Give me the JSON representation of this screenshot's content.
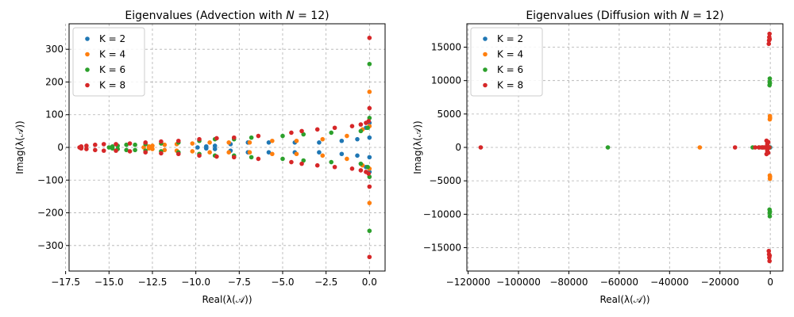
{
  "colors": {
    "K2": "#1f77b4",
    "K4": "#ff7f0e",
    "K6": "#2ca02c",
    "K8": "#d62728",
    "grid": "#b0b0b0"
  },
  "chart_data": [
    {
      "type": "scatter",
      "title": "Eigenvalues (Advection with ",
      "title_math": "N",
      "title_end": " = 12)",
      "xlabel": "Real(λ(𝒜))",
      "ylabel": "Imag(λ(𝒜))",
      "xlim": [
        -17.3,
        0.9
      ],
      "ylim": [
        -378,
        378
      ],
      "xticks": [
        -17.5,
        -15.0,
        -12.5,
        -10.0,
        -7.5,
        -5.0,
        -2.5,
        0.0
      ],
      "xtick_labels": [
        "−17.5",
        "−15.0",
        "−12.5",
        "−10.0",
        "−7.5",
        "−5.0",
        "−2.5",
        "0.0"
      ],
      "yticks": [
        -300,
        -200,
        -100,
        0,
        100,
        200,
        300
      ],
      "ytick_labels": [
        "−300",
        "−200",
        "−100",
        "0",
        "100",
        "200",
        "300"
      ],
      "grid": true,
      "legend_position": "top-left",
      "series": [
        {
          "name": "K = 2",
          "points": [
            [
              -9.9,
              0
            ],
            [
              -9.4,
              3
            ],
            [
              -9.4,
              -3
            ],
            [
              -8.9,
              5
            ],
            [
              -8.9,
              -5
            ],
            [
              -8.0,
              10
            ],
            [
              -8.0,
              -10
            ],
            [
              -7.0,
              15
            ],
            [
              -7.0,
              -15
            ],
            [
              -5.8,
              15
            ],
            [
              -5.8,
              -15
            ],
            [
              -4.3,
              15
            ],
            [
              -4.3,
              -15
            ],
            [
              -2.9,
              15
            ],
            [
              -2.9,
              -15
            ],
            [
              -1.6,
              20
            ],
            [
              -1.6,
              -20
            ],
            [
              -0.7,
              25
            ],
            [
              -0.7,
              -25
            ],
            [
              0.0,
              30
            ],
            [
              0.0,
              -30
            ],
            [
              0.0,
              75
            ],
            [
              0.0,
              -75
            ],
            [
              -0.2,
              60
            ],
            [
              -0.2,
              -60
            ]
          ]
        },
        {
          "name": "K = 4",
          "points": [
            [
              -13.0,
              0
            ],
            [
              -12.7,
              3
            ],
            [
              -12.7,
              -3
            ],
            [
              -12.5,
              5
            ],
            [
              -12.5,
              -5
            ],
            [
              -11.8,
              8
            ],
            [
              -11.8,
              -8
            ],
            [
              -11.1,
              10
            ],
            [
              -11.1,
              -10
            ],
            [
              -10.2,
              12
            ],
            [
              -10.2,
              -12
            ],
            [
              -9.2,
              15
            ],
            [
              -9.2,
              -15
            ],
            [
              -8.1,
              15
            ],
            [
              -8.1,
              -15
            ],
            [
              -6.9,
              15
            ],
            [
              -6.9,
              -15
            ],
            [
              -5.6,
              20
            ],
            [
              -5.6,
              -20
            ],
            [
              -4.2,
              20
            ],
            [
              -4.2,
              -20
            ],
            [
              -2.7,
              25
            ],
            [
              -2.7,
              -25
            ],
            [
              -1.3,
              35
            ],
            [
              -1.3,
              -35
            ],
            [
              -0.4,
              55
            ],
            [
              -0.4,
              -55
            ],
            [
              0.0,
              65
            ],
            [
              0.0,
              -65
            ],
            [
              0.0,
              170
            ],
            [
              0.0,
              -170
            ]
          ]
        },
        {
          "name": "K = 6",
          "points": [
            [
              -15.0,
              0
            ],
            [
              -14.8,
              3
            ],
            [
              -14.8,
              -3
            ],
            [
              -14.5,
              5
            ],
            [
              -14.5,
              -5
            ],
            [
              -14.0,
              8
            ],
            [
              -14.0,
              -8
            ],
            [
              -13.5,
              8
            ],
            [
              -13.5,
              -8
            ],
            [
              -12.9,
              10
            ],
            [
              -12.9,
              -10
            ],
            [
              -12.0,
              12
            ],
            [
              -12.0,
              -12
            ],
            [
              -11.0,
              15
            ],
            [
              -11.0,
              -15
            ],
            [
              -9.8,
              20
            ],
            [
              -9.8,
              -20
            ],
            [
              -8.9,
              25
            ],
            [
              -8.9,
              -25
            ],
            [
              -7.8,
              25
            ],
            [
              -7.8,
              -25
            ],
            [
              -6.8,
              30
            ],
            [
              -6.8,
              -30
            ],
            [
              -5.0,
              35
            ],
            [
              -5.0,
              -35
            ],
            [
              -3.8,
              40
            ],
            [
              -3.8,
              -40
            ],
            [
              -2.2,
              45
            ],
            [
              -2.2,
              -45
            ],
            [
              -0.5,
              50
            ],
            [
              -0.5,
              -50
            ],
            [
              -0.1,
              60
            ],
            [
              -0.1,
              -60
            ],
            [
              0.0,
              90
            ],
            [
              0.0,
              -90
            ],
            [
              0.0,
              255
            ],
            [
              0.0,
              -255
            ]
          ]
        },
        {
          "name": "K = 8",
          "points": [
            [
              -16.7,
              0
            ],
            [
              -16.6,
              3
            ],
            [
              -16.6,
              -3
            ],
            [
              -16.3,
              5
            ],
            [
              -16.3,
              -5
            ],
            [
              -15.8,
              8
            ],
            [
              -15.8,
              -8
            ],
            [
              -15.3,
              10
            ],
            [
              -15.3,
              -10
            ],
            [
              -14.6,
              10
            ],
            [
              -14.6,
              -10
            ],
            [
              -13.8,
              12
            ],
            [
              -13.8,
              -12
            ],
            [
              -12.9,
              15
            ],
            [
              -12.9,
              -15
            ],
            [
              -12.0,
              18
            ],
            [
              -12.0,
              -18
            ],
            [
              -11.0,
              20
            ],
            [
              -11.0,
              -20
            ],
            [
              -9.8,
              25
            ],
            [
              -9.8,
              -25
            ],
            [
              -8.8,
              28
            ],
            [
              -8.8,
              -28
            ],
            [
              -7.8,
              30
            ],
            [
              -7.8,
              -30
            ],
            [
              -6.4,
              35
            ],
            [
              -6.4,
              -35
            ],
            [
              -4.5,
              45
            ],
            [
              -4.5,
              -45
            ],
            [
              -3.9,
              50
            ],
            [
              -3.9,
              -50
            ],
            [
              -3.0,
              55
            ],
            [
              -3.0,
              -55
            ],
            [
              -2.0,
              60
            ],
            [
              -2.0,
              -60
            ],
            [
              -1.0,
              65
            ],
            [
              -1.0,
              -65
            ],
            [
              -0.5,
              70
            ],
            [
              -0.5,
              -70
            ],
            [
              -0.2,
              75
            ],
            [
              -0.2,
              -75
            ],
            [
              -0.05,
              80
            ],
            [
              -0.05,
              -80
            ],
            [
              0.0,
              120
            ],
            [
              0.0,
              -120
            ],
            [
              0.0,
              335
            ],
            [
              0.0,
              -335
            ]
          ]
        }
      ]
    },
    {
      "type": "scatter",
      "title": "Eigenvalues (Diffusion with ",
      "title_math": "N",
      "title_end": " = 12)",
      "xlabel": "Real(λ(𝒜))",
      "ylabel": "Imag(λ(𝒜))",
      "xlim": [
        -120500,
        5000
      ],
      "ylim": [
        -18500,
        18500
      ],
      "xticks": [
        -120000,
        -100000,
        -80000,
        -60000,
        -40000,
        -20000,
        0
      ],
      "xtick_labels": [
        "−120000",
        "−100000",
        "−80000",
        "−60000",
        "−40000",
        "−20000",
        "0"
      ],
      "yticks": [
        -15000,
        -10000,
        -5000,
        0,
        5000,
        10000,
        15000
      ],
      "ytick_labels": [
        "−15000",
        "−10000",
        "−5000",
        "0",
        "5000",
        "10000",
        "15000"
      ],
      "grid": true,
      "legend_position": "top-left",
      "series": [
        {
          "name": "K = 2",
          "points": [
            [
              -1400,
              0
            ],
            [
              -300,
              0
            ],
            [
              -100,
              0
            ],
            [
              -50,
              0
            ]
          ]
        },
        {
          "name": "K = 4",
          "points": [
            [
              -28000,
              0
            ],
            [
              -2000,
              0
            ],
            [
              -1200,
              0
            ],
            [
              -600,
              0
            ],
            [
              -300,
              0
            ],
            [
              -200,
              4200
            ],
            [
              -200,
              -4200
            ],
            [
              -150,
              4700
            ],
            [
              -150,
              -4700
            ],
            [
              -100,
              4400
            ],
            [
              -100,
              -4400
            ]
          ]
        },
        {
          "name": "K = 6",
          "points": [
            [
              -64500,
              0
            ],
            [
              -7000,
              0
            ],
            [
              -4500,
              0
            ],
            [
              -3000,
              0
            ],
            [
              -1500,
              0
            ],
            [
              -800,
              0
            ],
            [
              -400,
              0
            ],
            [
              -300,
              9300
            ],
            [
              -300,
              -9300
            ],
            [
              -250,
              9800
            ],
            [
              -250,
              -9800
            ],
            [
              -200,
              10300
            ],
            [
              -200,
              -10300
            ],
            [
              -150,
              9600
            ],
            [
              -150,
              -9600
            ]
          ]
        },
        {
          "name": "K = 8",
          "points": [
            [
              -115000,
              0
            ],
            [
              -14000,
              0
            ],
            [
              -6000,
              0
            ],
            [
              -4500,
              0
            ],
            [
              -3500,
              0
            ],
            [
              -3000,
              0
            ],
            [
              -2500,
              0
            ],
            [
              -2000,
              0
            ],
            [
              -1500,
              0
            ],
            [
              -1000,
              0
            ],
            [
              -800,
              0
            ],
            [
              -500,
              0
            ],
            [
              -1200,
              500
            ],
            [
              -1200,
              -500
            ],
            [
              -800,
              800
            ],
            [
              -800,
              -800
            ],
            [
              -1500,
              1000
            ],
            [
              -1500,
              -1000
            ],
            [
              -600,
              15500
            ],
            [
              -600,
              -15500
            ],
            [
              -500,
              16000
            ],
            [
              -500,
              -16000
            ],
            [
              -400,
              16500
            ],
            [
              -400,
              -16500
            ],
            [
              -300,
              17000
            ],
            [
              -300,
              -17000
            ],
            [
              -250,
              16200
            ],
            [
              -250,
              -16200
            ]
          ]
        }
      ]
    }
  ]
}
